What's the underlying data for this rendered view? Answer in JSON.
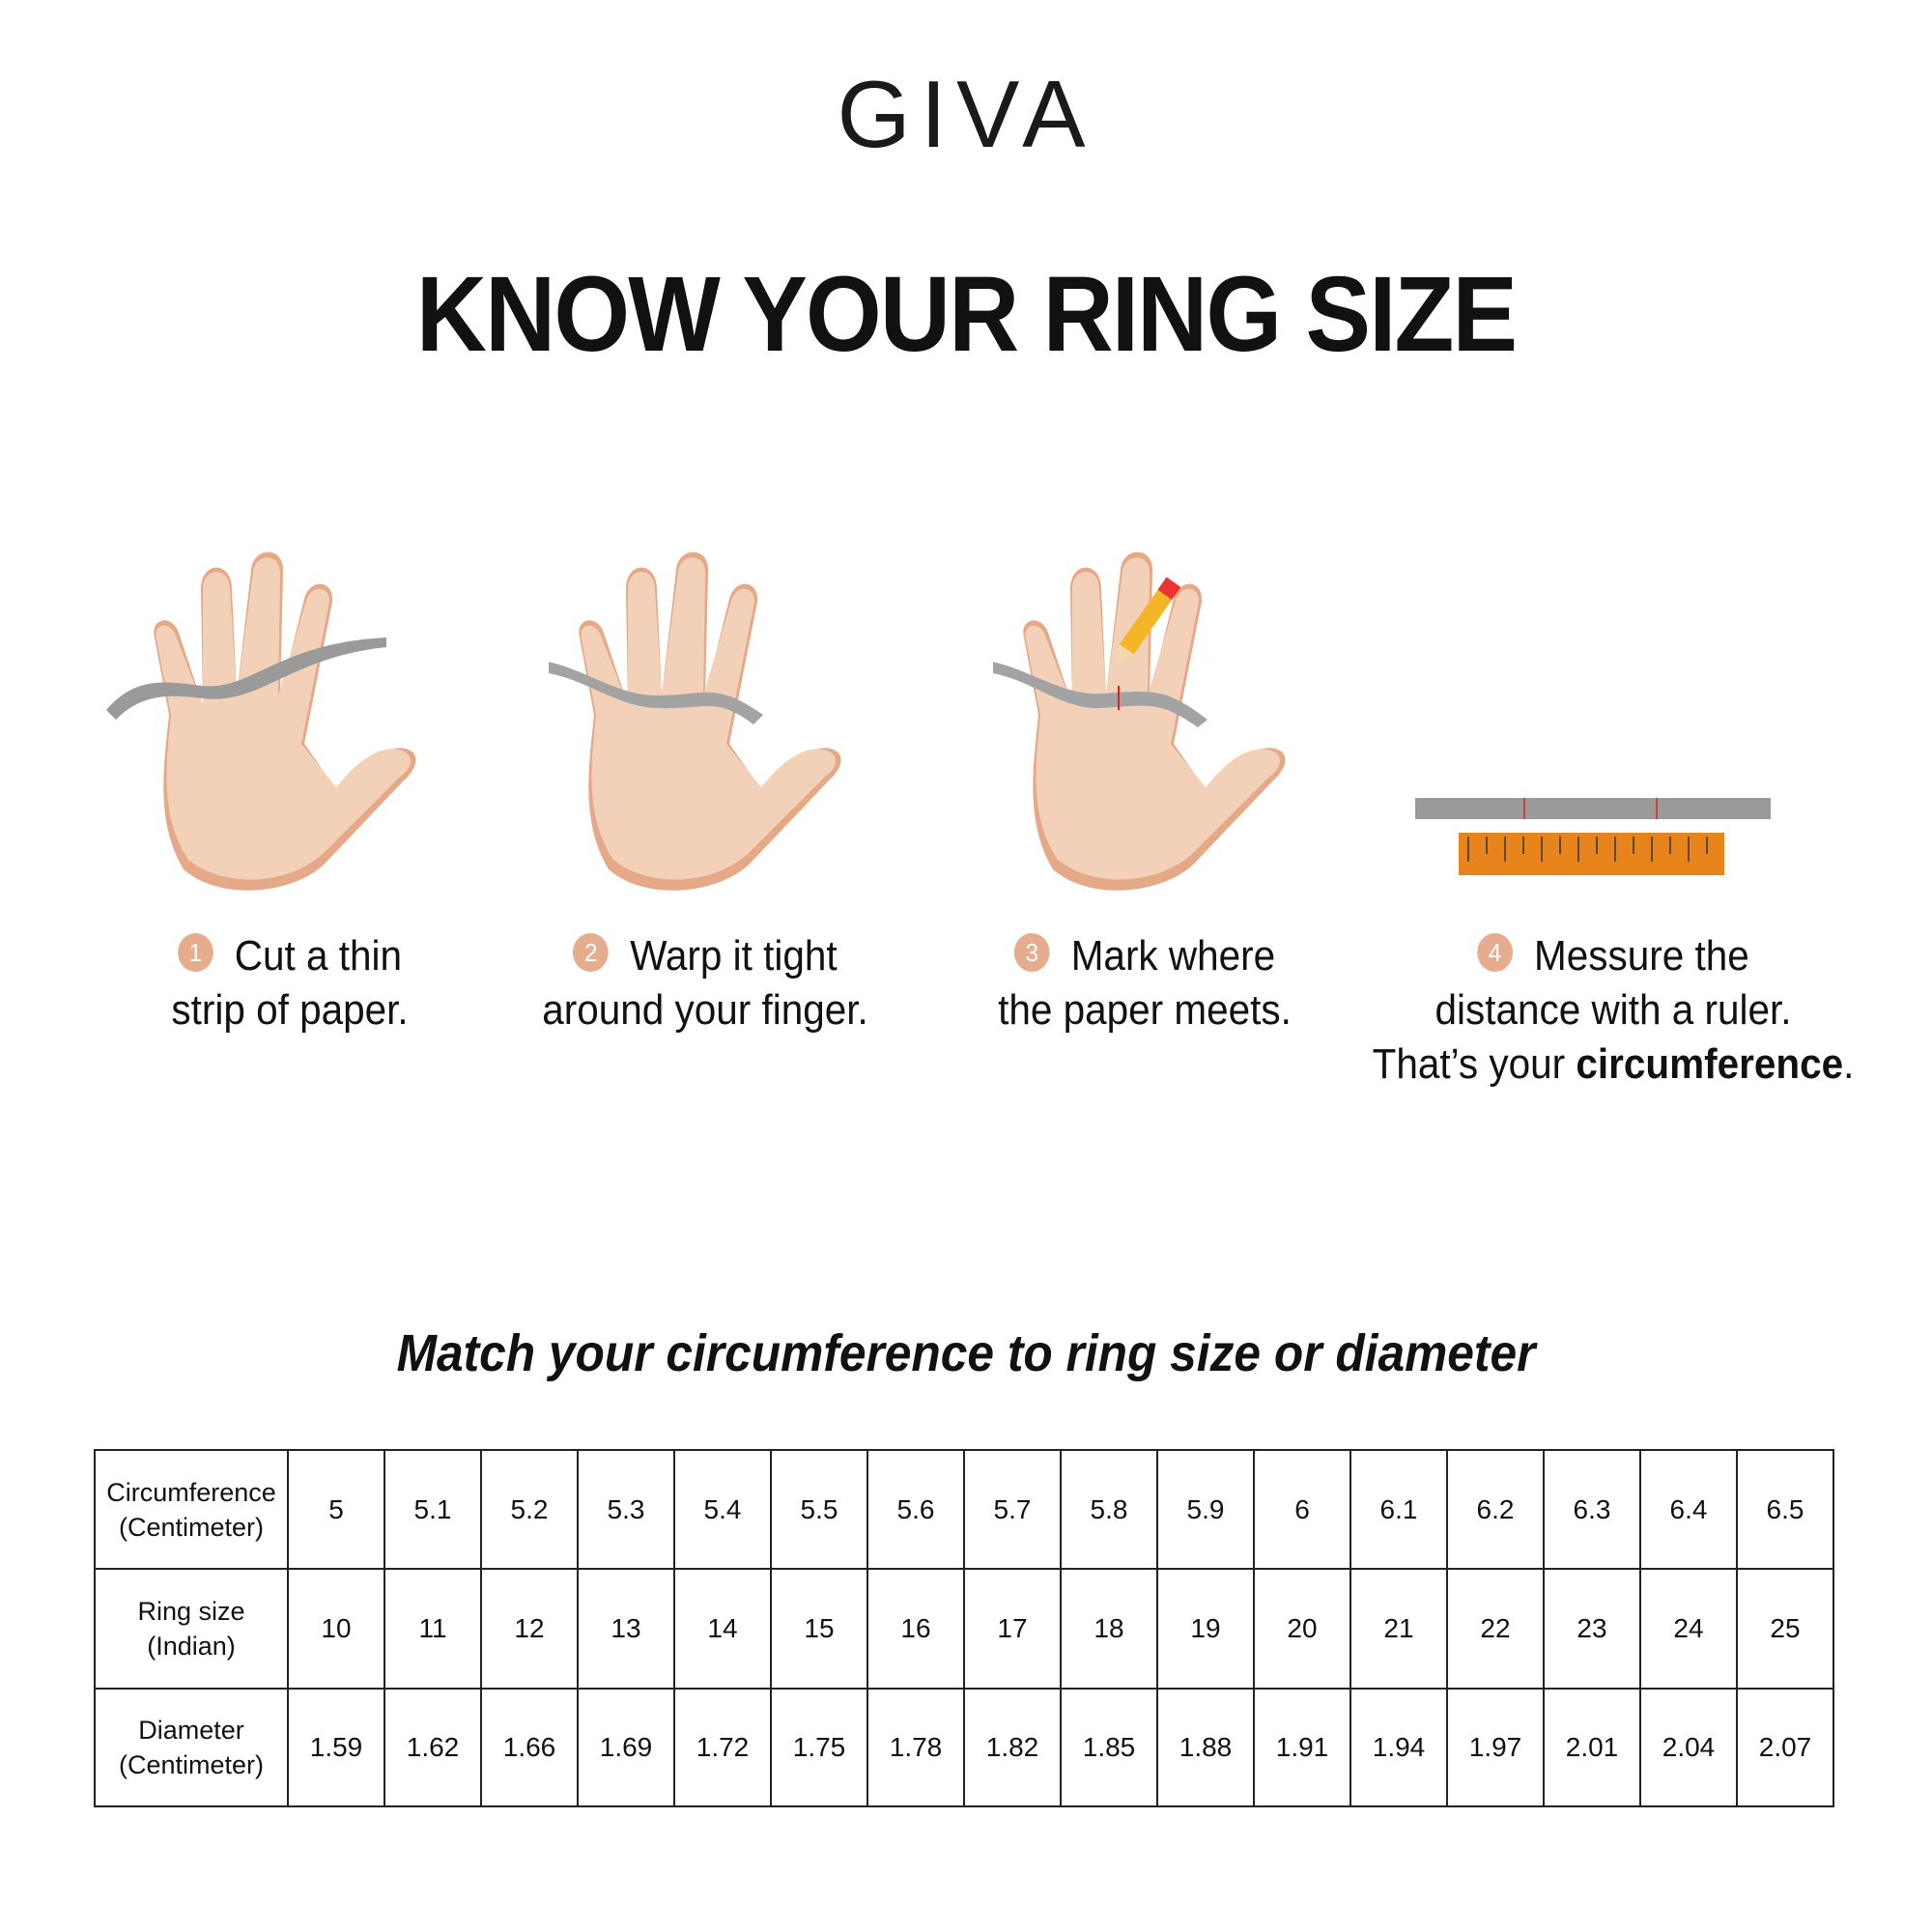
{
  "brand": {
    "logo": "GIVA"
  },
  "title": "KNOW YOUR RING SIZE",
  "steps": [
    {
      "number": "1",
      "line1": "Cut a thin",
      "line2": "strip of paper.",
      "line3": ""
    },
    {
      "number": "2",
      "line1": "Warp it tight",
      "line2": "around your finger.",
      "line3": ""
    },
    {
      "number": "3",
      "line1": "Mark where",
      "line2": "the paper meets.",
      "line3": ""
    },
    {
      "number": "4",
      "line1": "Messure the",
      "line2": "distance with a ruler.",
      "line3_prefix": "That’s your ",
      "line3_bold": "circumference",
      "line3_suffix": "."
    }
  ],
  "subtitle": "Match your circumference to ring size or diameter",
  "table": {
    "rows": [
      {
        "header1": "Circumference",
        "header2": "(Centimeter)",
        "values": [
          "5",
          "5.1",
          "5.2",
          "5.3",
          "5.4",
          "5.5",
          "5.6",
          "5.7",
          "5.8",
          "5.9",
          "6",
          "6.1",
          "6.2",
          "6.3",
          "6.4",
          "6.5"
        ]
      },
      {
        "header1": "Ring size",
        "header2": "(Indian)",
        "values": [
          "10",
          "11",
          "12",
          "13",
          "14",
          "15",
          "16",
          "17",
          "18",
          "19",
          "20",
          "21",
          "22",
          "23",
          "24",
          "25"
        ]
      },
      {
        "header1": "Diameter",
        "header2": "(Centimeter)",
        "values": [
          "1.59",
          "1.62",
          "1.66",
          "1.69",
          "1.72",
          "1.75",
          "1.78",
          "1.82",
          "1.85",
          "1.88",
          "1.91",
          "1.94",
          "1.97",
          "2.01",
          "2.04",
          "2.07"
        ]
      }
    ]
  },
  "colors": {
    "skin": "#f3d1b8",
    "skin_shadow": "#e6a987",
    "paper_strip": "#9a9a9a",
    "ruler": "#e8841c",
    "step_badge": "#e5ad8e"
  }
}
